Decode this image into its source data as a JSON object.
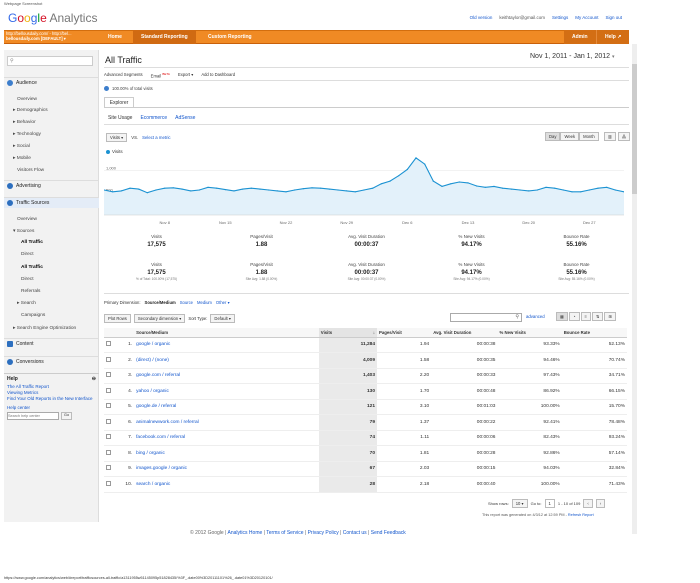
{
  "caption": "Webpage Screenshot",
  "logo": {
    "brand": "Google",
    "product": "Analytics"
  },
  "toplinks": {
    "old_version": "Old version",
    "email": "keithtaylor@gmail.com",
    "settings": "Settings",
    "my_account": "My Account",
    "sign_out": "Sign out"
  },
  "account": {
    "line1": "http://bellousdaily.com/ - http://bel...",
    "line2": "bellousdaily.com [DEFAULT]"
  },
  "nav": {
    "home": "Home",
    "standard": "Standard Reporting",
    "custom": "Custom Reporting",
    "admin": "Admin",
    "help": "Help"
  },
  "sidebar": {
    "audience": "Audience",
    "overview": "Overview",
    "demographics": "Demographics",
    "behavior": "Behavior",
    "technology": "Technology",
    "social": "Social",
    "mobile": "Mobile",
    "visitors_flow": "Visitors Flow",
    "advertising": "Advertising",
    "traffic_sources": "Traffic Sources",
    "ts_overview": "Overview",
    "sources": "Sources",
    "all_traffic": "All Traffic",
    "direct": "Direct",
    "all_traffic2": "All Traffic",
    "direct2": "Direct",
    "referrals": "Referrals",
    "search": "Search",
    "campaigns": "Campaigns",
    "seo": "Search Engine Optimization",
    "content": "Content",
    "conversions": "Conversions"
  },
  "help": {
    "title": "Help",
    "link1": "The All Traffic Report",
    "link2": "Viewing Metrics",
    "link3": "Find Your Old Reports in the New Interface",
    "center": "Help center",
    "placeholder": "Search help center",
    "go": "Go"
  },
  "page": {
    "title": "All Traffic",
    "date_range": "Nov 1, 2011 - Jan 1, 2012"
  },
  "toolbar": {
    "adv_segments": "Advanced Segments",
    "email": "Email",
    "beta": "BETA",
    "export": "Export",
    "add_dashboard": "Add to Dashboard"
  },
  "segment": {
    "label": "100.00% of total visits"
  },
  "explorer": "Explorer",
  "subtabs": {
    "site_usage": "Site Usage",
    "ecommerce": "Ecommerce",
    "adsense": "AdSense"
  },
  "chartctl": {
    "metric": "Visits",
    "vs": "VS.",
    "select_metric": "Select a metric",
    "day": "Day",
    "week": "Week",
    "month": "Month"
  },
  "chart_data": {
    "type": "line",
    "series": [
      {
        "name": "Visits",
        "values": [
          560,
          520,
          540,
          600,
          580,
          500,
          560,
          600,
          610,
          580,
          540,
          560,
          620,
          600,
          570,
          540,
          580,
          600,
          580,
          560,
          540,
          520,
          560,
          590,
          610,
          600,
          580,
          560,
          540,
          520,
          560,
          600,
          700,
          760,
          880,
          1020,
          1280,
          1140,
          760,
          640,
          700,
          740,
          720,
          650,
          620,
          640,
          600,
          580,
          560,
          540,
          560,
          620,
          600,
          560,
          520,
          520,
          560,
          600,
          620,
          560,
          520
        ]
      }
    ],
    "x_ticks": [
      "Nov 8",
      "Nov 15",
      "Nov 22",
      "Nov 29",
      "Dec 6",
      "Dec 13",
      "Dec 20",
      "Dec 27"
    ],
    "y_ticks": [
      "1,000",
      "500"
    ],
    "ylim": [
      0,
      1300
    ],
    "color": "#1b92d2"
  },
  "metrics": [
    {
      "label": "Visits",
      "value": "17,575"
    },
    {
      "label": "Pages/Visit",
      "value": "1.88"
    },
    {
      "label": "Avg. Visit Duration",
      "value": "00:00:37"
    },
    {
      "label": "% New Visits",
      "value": "94.17%"
    },
    {
      "label": "Bounce Rate",
      "value": "55.16%"
    }
  ],
  "metrics2": [
    {
      "label": "Visits",
      "value": "17,575",
      "sub": "% of Total: 100.00% (17,575)"
    },
    {
      "label": "Pages/Visit",
      "value": "1.88",
      "sub": "Site Avg: 1.88 (0.00%)"
    },
    {
      "label": "Avg. Visit Duration",
      "value": "00:00:37",
      "sub": "Site Avg: 00:00:37 (0.00%)"
    },
    {
      "label": "% New Visits",
      "value": "94.17%",
      "sub": "Site Avg: 94.17% (0.00%)"
    },
    {
      "label": "Bounce Rate",
      "value": "55.16%",
      "sub": "Site Avg: 55.16% (0.00%)"
    }
  ],
  "dimension": {
    "label": "Primary Dimension:",
    "current": "Source/Medium",
    "source": "Source",
    "medium": "Medium",
    "other": "Other"
  },
  "controls": {
    "plot_rows": "Plot Rows",
    "secondary": "Secondary dimension",
    "sort_type": "Sort Type:",
    "sort_default": "Default",
    "advanced": "advanced"
  },
  "table": {
    "headers": [
      "Source/Medium",
      "Visits",
      "Pages/Visit",
      "Avg. Visit Duration",
      "% New Visits",
      "Bounce Rate"
    ],
    "rows": [
      [
        "1.",
        "google / organic",
        "11,284",
        "1.94",
        "00:00:38",
        "93.33%",
        "52.13%"
      ],
      [
        "2.",
        "(direct) / (none)",
        "4,009",
        "1.58",
        "00:00:35",
        "94.46%",
        "70.74%"
      ],
      [
        "3.",
        "google.com / referral",
        "1,403",
        "2.20",
        "00:00:33",
        "97.43%",
        "34.71%"
      ],
      [
        "4.",
        "yahoo / organic",
        "130",
        "1.70",
        "00:00:48",
        "86.92%",
        "66.15%"
      ],
      [
        "5.",
        "google.de / referral",
        "121",
        "3.10",
        "00:01:03",
        "100.00%",
        "15.70%"
      ],
      [
        "6.",
        "animalnewwork.com / referral",
        "79",
        "1.37",
        "00:00:22",
        "92.41%",
        "78.48%"
      ],
      [
        "7.",
        "facebook.com / referral",
        "74",
        "1.11",
        "00:00:06",
        "82.43%",
        "93.24%"
      ],
      [
        "8.",
        "bing / organic",
        "70",
        "1.81",
        "00:00:28",
        "92.86%",
        "57.14%"
      ],
      [
        "9.",
        "images.google / organic",
        "67",
        "2.03",
        "00:00:15",
        "94.03%",
        "32.84%"
      ],
      [
        "10.",
        "search / organic",
        "28",
        "2.18",
        "00:00:40",
        "100.00%",
        "71.43%"
      ]
    ]
  },
  "pager": {
    "show_rows": "Show rows:",
    "rows": "10",
    "goto": "Go to:",
    "page": "1",
    "range": "1 - 10 of 109"
  },
  "generated": {
    "text": "This report was generated on 4/3/12 at 12:59 PM -",
    "refresh": "Refresh Report"
  },
  "footer": {
    "copy": "© 2012 Google",
    "home": "Analytics Home",
    "terms": "Terms of Service",
    "privacy": "Privacy Policy",
    "contact": "Contact us",
    "feedback": "Send Feedback"
  },
  "url": "https://www.google.com/analytics/web/#report/trafficsources-all-traffic/a1311955w51145095p51828435/%3F_.date00%3D20111101%26_.date01%3D20120101/"
}
